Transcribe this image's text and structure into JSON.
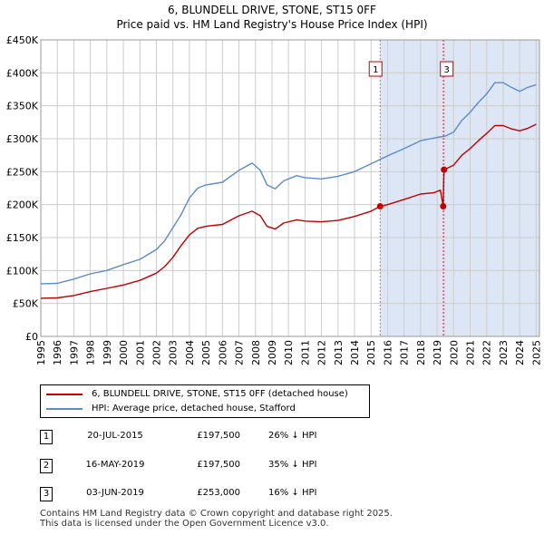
{
  "title_line1": "6, BLUNDELL DRIVE, STONE, ST15 0FF",
  "title_line2": "Price paid vs. HM Land Registry's House Price Index (HPI)",
  "chart_data": {
    "type": "line",
    "x_range": [
      1995,
      2025.2
    ],
    "ylim": [
      0,
      450000
    ],
    "y_ticks": [
      {
        "value": 0,
        "label": "£0"
      },
      {
        "value": 50000,
        "label": "£50K"
      },
      {
        "value": 100000,
        "label": "£100K"
      },
      {
        "value": 150000,
        "label": "£150K"
      },
      {
        "value": 200000,
        "label": "£200K"
      },
      {
        "value": 250000,
        "label": "£250K"
      },
      {
        "value": 300000,
        "label": "£300K"
      },
      {
        "value": 350000,
        "label": "£350K"
      },
      {
        "value": 400000,
        "label": "£400K"
      },
      {
        "value": 450000,
        "label": "£450K"
      }
    ],
    "x_ticks": [
      "1995",
      "1996",
      "1997",
      "1998",
      "1999",
      "2000",
      "2001",
      "2002",
      "2003",
      "2004",
      "2005",
      "2006",
      "2007",
      "2008",
      "2009",
      "2010",
      "2011",
      "2012",
      "2013",
      "2014",
      "2015",
      "2016",
      "2017",
      "2018",
      "2019",
      "2020",
      "2021",
      "2022",
      "2023",
      "2024",
      "2025"
    ],
    "grid": true,
    "shaded_period": {
      "from": 2015.55,
      "to": 2025.2,
      "color": "#dde6f5"
    },
    "series": [
      {
        "name": "HPI: Average price, detached house, Stafford",
        "color": "#5b8bc9",
        "points": [
          [
            1995.0,
            80000
          ],
          [
            1996.0,
            80500
          ],
          [
            1997.0,
            87000
          ],
          [
            1998.0,
            95000
          ],
          [
            1999.0,
            100000
          ],
          [
            2000.0,
            109000
          ],
          [
            2001.0,
            117000
          ],
          [
            2002.0,
            132000
          ],
          [
            2002.5,
            145000
          ],
          [
            2003.0,
            165000
          ],
          [
            2003.5,
            185000
          ],
          [
            2004.0,
            210000
          ],
          [
            2004.5,
            225000
          ],
          [
            2005.0,
            230000
          ],
          [
            2006.0,
            234000
          ],
          [
            2007.0,
            252000
          ],
          [
            2007.8,
            263000
          ],
          [
            2008.3,
            252000
          ],
          [
            2008.7,
            230000
          ],
          [
            2009.2,
            224000
          ],
          [
            2009.7,
            236000
          ],
          [
            2010.5,
            244000
          ],
          [
            2011.0,
            241000
          ],
          [
            2012.0,
            239000
          ],
          [
            2013.0,
            243000
          ],
          [
            2014.0,
            250000
          ],
          [
            2015.0,
            262000
          ],
          [
            2016.0,
            274000
          ],
          [
            2017.0,
            285000
          ],
          [
            2018.0,
            297000
          ],
          [
            2019.0,
            302000
          ],
          [
            2019.5,
            304000
          ],
          [
            2020.0,
            310000
          ],
          [
            2020.5,
            328000
          ],
          [
            2021.0,
            340000
          ],
          [
            2021.5,
            355000
          ],
          [
            2022.0,
            368000
          ],
          [
            2022.5,
            385000
          ],
          [
            2023.0,
            385000
          ],
          [
            2023.5,
            378000
          ],
          [
            2024.0,
            372000
          ],
          [
            2024.5,
            378000
          ],
          [
            2025.0,
            382000
          ]
        ]
      },
      {
        "name": "6, BLUNDELL DRIVE, STONE, ST15 0FF (detached house)",
        "color": "#c00000",
        "points": [
          [
            1995.0,
            58000
          ],
          [
            1996.0,
            58500
          ],
          [
            1997.0,
            62000
          ],
          [
            1998.0,
            68000
          ],
          [
            1999.0,
            73000
          ],
          [
            2000.0,
            78000
          ],
          [
            2001.0,
            85000
          ],
          [
            2002.0,
            96000
          ],
          [
            2002.5,
            106000
          ],
          [
            2003.0,
            120000
          ],
          [
            2003.5,
            138000
          ],
          [
            2004.0,
            154000
          ],
          [
            2004.5,
            164000
          ],
          [
            2005.0,
            167000
          ],
          [
            2006.0,
            170000
          ],
          [
            2007.0,
            183000
          ],
          [
            2007.8,
            190000
          ],
          [
            2008.3,
            183000
          ],
          [
            2008.7,
            167000
          ],
          [
            2009.2,
            163000
          ],
          [
            2009.7,
            172000
          ],
          [
            2010.5,
            177000
          ],
          [
            2011.0,
            175000
          ],
          [
            2012.0,
            174000
          ],
          [
            2013.0,
            176000
          ],
          [
            2014.0,
            182000
          ],
          [
            2015.0,
            190000
          ],
          [
            2015.55,
            197500
          ],
          [
            2016.0,
            200000
          ],
          [
            2017.0,
            208000
          ],
          [
            2018.0,
            216000
          ],
          [
            2018.8,
            218000
          ],
          [
            2019.2,
            222000
          ],
          [
            2019.37,
            197500
          ],
          [
            2019.42,
            253000
          ],
          [
            2020.0,
            260000
          ],
          [
            2020.5,
            275000
          ],
          [
            2021.0,
            285000
          ],
          [
            2021.5,
            297000
          ],
          [
            2022.0,
            308000
          ],
          [
            2022.5,
            320000
          ],
          [
            2023.0,
            320000
          ],
          [
            2023.5,
            315000
          ],
          [
            2024.0,
            312000
          ],
          [
            2024.5,
            316000
          ],
          [
            2025.0,
            322000
          ]
        ]
      }
    ],
    "sales": [
      {
        "label": "1",
        "date": "20-JUL-2015",
        "x": 2015.55,
        "price": 197500,
        "price_label": "£197,500",
        "hpi": "26% ↓ HPI"
      },
      {
        "label": "2",
        "date": "16-MAY-2019",
        "x": 2019.37,
        "price": 197500,
        "price_label": "£197,500",
        "hpi": "35% ↓ HPI"
      },
      {
        "label": "3",
        "date": "03-JUN-2019",
        "x": 2019.42,
        "price": 253000,
        "price_label": "£253,000",
        "hpi": "16% ↓ HPI"
      }
    ],
    "chart_markers": [
      "1",
      "3"
    ]
  },
  "legend": {
    "property_label": "6, BLUNDELL DRIVE, STONE, ST15 0FF (detached house)",
    "hpi_label": "HPI: Average price, detached house, Stafford"
  },
  "colors": {
    "property": "#c00000",
    "hpi": "#5b8bc9",
    "shade": "#dde6f5"
  },
  "footer_line1": "Contains HM Land Registry data © Crown copyright and database right 2025.",
  "footer_line2": "This data is licensed under the Open Government Licence v3.0."
}
